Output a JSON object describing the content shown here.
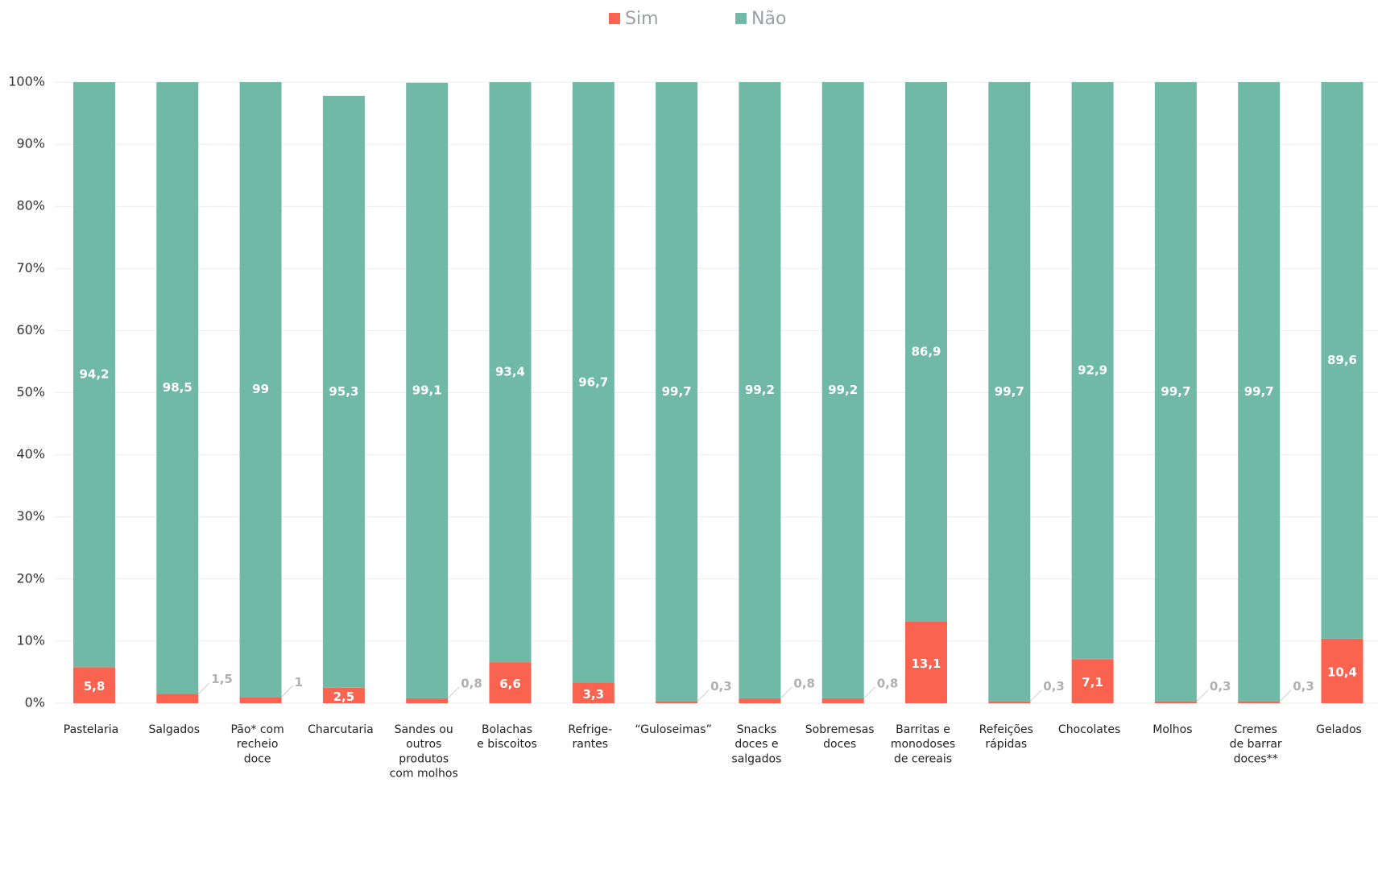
{
  "chart_data": {
    "type": "stacked_bar",
    "categories": [
      "Pastelaria",
      "Salgados",
      "Pão* com\nrecheio\ndoce",
      "Charcutaria",
      "Sandes ou\noutros\nprodutos\ncom molhos",
      "Bolachas\ne biscoitos",
      "Refrige-\nrantes",
      "“Guloseimas”",
      "Snacks\ndoces e\nsalgados",
      "Sobremesas\ndoces",
      "Barritas e\nmonodoses\nde cereais",
      "Refeições\nrápidas",
      "Chocolates",
      "Molhos",
      "Cremes\nde barrar\ndoces**",
      "Gelados"
    ],
    "series": [
      {
        "name": "Sim",
        "color": "#f9634f",
        "values": [
          5.8,
          1.5,
          1,
          2.5,
          0.8,
          6.6,
          3.3,
          0.3,
          0.8,
          0.8,
          13.1,
          0.3,
          7.1,
          0.3,
          0.3,
          10.4
        ],
        "value_labels": [
          "5,8",
          "1,5",
          "1",
          "2,5",
          "0,8",
          "6,6",
          "3,3",
          "0,3",
          "0,8",
          "0,8",
          "13,1",
          "0,3",
          "7,1",
          "0,3",
          "0,3",
          "10,4"
        ]
      },
      {
        "name": "Não",
        "color": "#70b9a7",
        "values": [
          94.2,
          98.5,
          99,
          95.3,
          99.1,
          93.4,
          96.7,
          99.7,
          99.2,
          99.2,
          86.9,
          99.7,
          92.9,
          99.7,
          99.7,
          89.6
        ],
        "value_labels": [
          "94,2",
          "98,5",
          "99",
          "95,3",
          "99,1",
          "93,4",
          "96,7",
          "99,7",
          "99,2",
          "99,2",
          "86,9",
          "99,7",
          "92,9",
          "99,7",
          "99,7",
          "89,6"
        ]
      }
    ],
    "ylim": [
      0,
      100
    ],
    "yticks": [
      {
        "value": 0,
        "label": "0%"
      },
      {
        "value": 10,
        "label": "10%"
      },
      {
        "value": 20,
        "label": "20%"
      },
      {
        "value": 30,
        "label": "30%"
      },
      {
        "value": 40,
        "label": "40%"
      },
      {
        "value": 50,
        "label": "50%"
      },
      {
        "value": 60,
        "label": "60%"
      },
      {
        "value": 70,
        "label": "70%"
      },
      {
        "value": 80,
        "label": "80%"
      },
      {
        "value": 90,
        "label": "90%"
      },
      {
        "value": 100,
        "label": "100%"
      }
    ],
    "grid": true,
    "legend": "top"
  }
}
